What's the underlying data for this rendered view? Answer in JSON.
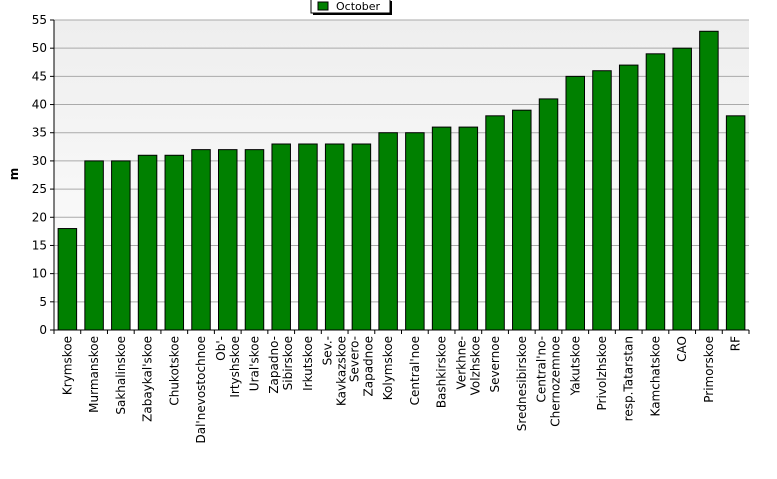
{
  "chart_data": {
    "type": "bar",
    "title": "",
    "xlabel": "",
    "ylabel": "m",
    "ylim": [
      0,
      55
    ],
    "yticks": [
      0,
      5,
      10,
      15,
      20,
      25,
      30,
      35,
      40,
      45,
      50,
      55
    ],
    "grid": true,
    "legend_position": "top-center",
    "series": [
      {
        "name": "October",
        "color": "#008000",
        "values": [
          18,
          30,
          30,
          31,
          31,
          32,
          32,
          32,
          33,
          33,
          33,
          33,
          35,
          35,
          36,
          36,
          38,
          39,
          41,
          45,
          46,
          47,
          49,
          50,
          53,
          38
        ]
      }
    ],
    "categories": [
      [
        "Krymskoe"
      ],
      [
        "Murmanskoe"
      ],
      [
        "Sakhalinskoe"
      ],
      [
        "Zabaykal'skoe"
      ],
      [
        "Chukotskoe"
      ],
      [
        "Dal'nevostochnoe"
      ],
      [
        "Ob'-",
        "Irtyshskoe"
      ],
      [
        "Ural'skoe"
      ],
      [
        "Zapadno-",
        "Sibirskoe"
      ],
      [
        "Irkutskoe"
      ],
      [
        "Sev.-",
        "Kavkazskoe"
      ],
      [
        "Severo-",
        "Zapadnoe"
      ],
      [
        "Kolymskoe"
      ],
      [
        "Central'noe"
      ],
      [
        "Bashkirskoe"
      ],
      [
        "Verkhne-",
        "Volzhskoe"
      ],
      [
        "Severnoe"
      ],
      [
        "Srednesibirskoe"
      ],
      [
        "Central'no-",
        "Chernozemnoe"
      ],
      [
        "Yakutskoe"
      ],
      [
        "Privolzhskoe"
      ],
      [
        "resp.Tatarstan"
      ],
      [
        "Kamchatskoe"
      ],
      [
        "CAO"
      ],
      [
        "Primorskoe"
      ],
      [
        "RF"
      ]
    ]
  }
}
